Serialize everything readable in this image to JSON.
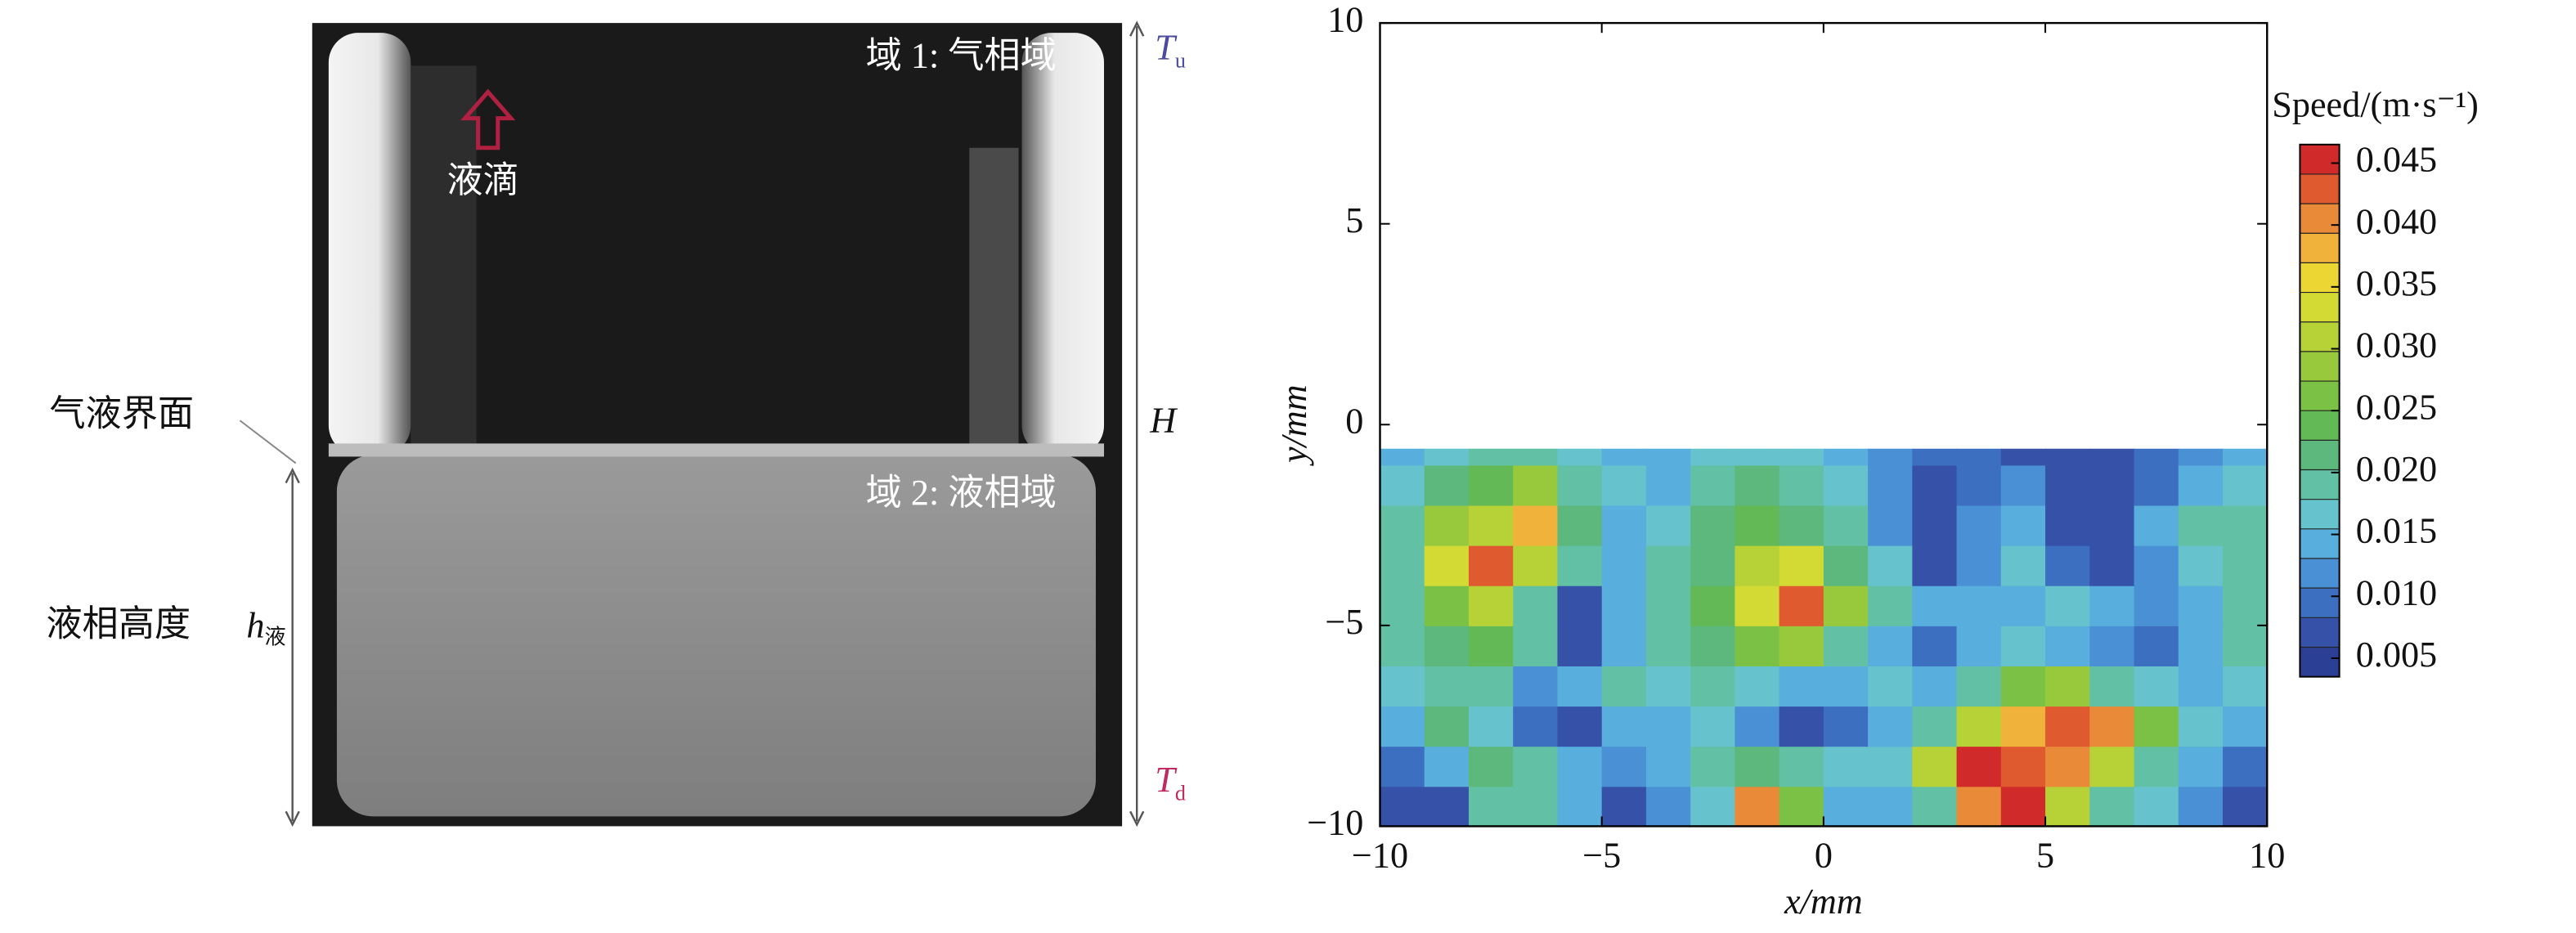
{
  "photo_panel": {
    "region_1": "域 1: 气相域",
    "droplet": "液滴",
    "region_2": "域 2: 液相域",
    "interface": "气液界面",
    "liquid_height": "液相高度",
    "h_symbol": "h",
    "h_subscript": "液",
    "top_temp": "T",
    "top_temp_sub": "u",
    "bottom_temp": "T",
    "bottom_temp_sub": "d",
    "height": "H"
  },
  "chart_data": {
    "type": "contour",
    "xlabel": "x/mm",
    "ylabel": "y/mm",
    "xlim": [
      -10,
      10
    ],
    "ylim": [
      -10,
      10
    ],
    "xticks": [
      {
        "value": -10,
        "label": "−10"
      },
      {
        "value": -5,
        "label": "−5"
      },
      0,
      5,
      10
    ],
    "yticks": [
      {
        "value": -10,
        "label": "−10"
      },
      {
        "value": -5,
        "label": "−5"
      },
      0,
      5,
      10
    ],
    "colorbar_title": "Speed/(m·s⁻¹)",
    "colorbar_lim": [
      0.0035,
      0.0465
    ],
    "colorbar_ticks": [
      0.005,
      {
        "value": 0.01,
        "label": "0.010"
      },
      0.015,
      {
        "value": 0.02,
        "label": "0.020"
      },
      0.025,
      {
        "value": 0.03,
        "label": "0.030"
      },
      0.035,
      {
        "value": 0.04,
        "label": "0.040"
      },
      0.045
    ],
    "colors": [
      "#2b3f94",
      "#3552a8",
      "#3d6fc0",
      "#4a90d4",
      "#58aedc",
      "#66c2cc",
      "#62c0a4",
      "#5cb87c",
      "#62b955",
      "#7bc146",
      "#98c93d",
      "#b6d237",
      "#d4da34",
      "#ecd634",
      "#f0b23a",
      "#e88a38",
      "#e05a30",
      "#d02a2a"
    ],
    "xbins": [
      -10,
      -9,
      -8,
      -7,
      -6,
      -5,
      -4,
      -3,
      -2,
      -1,
      0,
      1,
      2,
      3,
      4,
      5,
      6,
      7,
      8,
      9,
      10
    ],
    "ybins": [
      -10,
      -9,
      -8,
      -7,
      -6,
      -5,
      -4,
      -3,
      -2,
      -1,
      -0.6
    ],
    "z": [
      [
        0.006,
        0.007,
        0.02,
        0.018,
        0.014,
        0.006,
        0.012,
        0.016,
        0.04,
        0.025,
        0.015,
        0.014,
        0.02,
        0.04,
        0.045,
        0.03,
        0.02,
        0.016,
        0.012,
        0.006
      ],
      [
        0.01,
        0.014,
        0.022,
        0.02,
        0.014,
        0.012,
        0.015,
        0.018,
        0.022,
        0.02,
        0.016,
        0.016,
        0.03,
        0.045,
        0.042,
        0.04,
        0.032,
        0.02,
        0.014,
        0.01
      ],
      [
        0.015,
        0.022,
        0.016,
        0.01,
        0.008,
        0.014,
        0.014,
        0.016,
        0.012,
        0.008,
        0.01,
        0.014,
        0.02,
        0.03,
        0.038,
        0.042,
        0.04,
        0.025,
        0.016,
        0.014
      ],
      [
        0.016,
        0.02,
        0.018,
        0.012,
        0.015,
        0.018,
        0.016,
        0.02,
        0.016,
        0.014,
        0.015,
        0.016,
        0.014,
        0.02,
        0.025,
        0.028,
        0.02,
        0.016,
        0.015,
        0.016
      ],
      [
        0.02,
        0.022,
        0.024,
        0.018,
        0.007,
        0.015,
        0.02,
        0.022,
        0.025,
        0.028,
        0.018,
        0.014,
        0.01,
        0.014,
        0.016,
        0.014,
        0.012,
        0.01,
        0.014,
        0.02
      ],
      [
        0.02,
        0.026,
        0.03,
        0.02,
        0.006,
        0.014,
        0.02,
        0.024,
        0.034,
        0.044,
        0.028,
        0.018,
        0.014,
        0.014,
        0.015,
        0.016,
        0.014,
        0.012,
        0.014,
        0.018
      ],
      [
        0.02,
        0.034,
        0.044,
        0.03,
        0.02,
        0.014,
        0.018,
        0.022,
        0.03,
        0.034,
        0.022,
        0.016,
        0.008,
        0.012,
        0.016,
        0.01,
        0.008,
        0.012,
        0.016,
        0.02
      ],
      [
        0.02,
        0.028,
        0.03,
        0.038,
        0.022,
        0.015,
        0.016,
        0.022,
        0.024,
        0.022,
        0.018,
        0.012,
        0.006,
        0.012,
        0.015,
        0.008,
        0.008,
        0.014,
        0.018,
        0.02
      ],
      [
        0.016,
        0.022,
        0.024,
        0.028,
        0.02,
        0.016,
        0.015,
        0.02,
        0.022,
        0.02,
        0.016,
        0.012,
        0.008,
        0.01,
        0.012,
        0.008,
        0.008,
        0.01,
        0.014,
        0.016
      ],
      [
        0.014,
        0.016,
        0.018,
        0.018,
        0.016,
        0.014,
        0.014,
        0.016,
        0.016,
        0.016,
        0.014,
        0.012,
        0.01,
        0.01,
        0.008,
        0.008,
        0.008,
        0.01,
        0.012,
        0.014
      ]
    ]
  }
}
